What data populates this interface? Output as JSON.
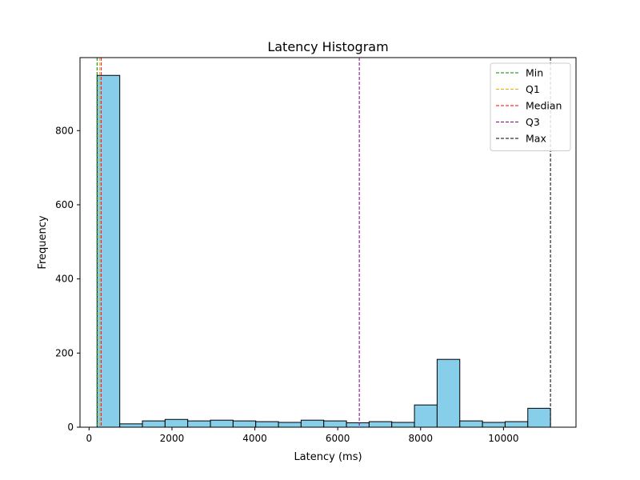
{
  "chart_data": {
    "type": "bar",
    "subtype": "histogram",
    "title": "Latency Histogram",
    "xlabel": "Latency (ms)",
    "ylabel": "Frequency",
    "xlim": [
      -219,
      11749
    ],
    "ylim": [
      0,
      997
    ],
    "x_ticks": [
      0,
      2000,
      4000,
      6000,
      8000,
      10000
    ],
    "y_ticks": [
      0,
      200,
      400,
      600,
      800
    ],
    "grid": false,
    "legend_position": "top-right",
    "bar_color": "#87ceeb",
    "bar_edge_color": "#000000",
    "bins": [
      {
        "start": 193,
        "end": 740,
        "count": 949
      },
      {
        "start": 740,
        "end": 1287,
        "count": 9
      },
      {
        "start": 1287,
        "end": 1834,
        "count": 17
      },
      {
        "start": 1834,
        "end": 2381,
        "count": 21
      },
      {
        "start": 2381,
        "end": 2928,
        "count": 17
      },
      {
        "start": 2928,
        "end": 3475,
        "count": 19
      },
      {
        "start": 3475,
        "end": 4022,
        "count": 17
      },
      {
        "start": 4022,
        "end": 4569,
        "count": 15
      },
      {
        "start": 4569,
        "end": 5116,
        "count": 13
      },
      {
        "start": 5116,
        "end": 5663,
        "count": 19
      },
      {
        "start": 5663,
        "end": 6210,
        "count": 17
      },
      {
        "start": 6210,
        "end": 6757,
        "count": 12
      },
      {
        "start": 6757,
        "end": 7304,
        "count": 15
      },
      {
        "start": 7304,
        "end": 7851,
        "count": 13
      },
      {
        "start": 7851,
        "end": 8398,
        "count": 60
      },
      {
        "start": 8398,
        "end": 8945,
        "count": 183
      },
      {
        "start": 8945,
        "end": 9492,
        "count": 17
      },
      {
        "start": 9492,
        "end": 10039,
        "count": 13
      },
      {
        "start": 10039,
        "end": 10586,
        "count": 15
      },
      {
        "start": 10586,
        "end": 11133,
        "count": 51
      }
    ],
    "reference_lines": [
      {
        "name": "Min",
        "value": 193,
        "color": "#008000"
      },
      {
        "name": "Q1",
        "value": 250,
        "color": "#ffa500"
      },
      {
        "name": "Median",
        "value": 290,
        "color": "#ff0000"
      },
      {
        "name": "Q3",
        "value": 6520,
        "color": "#800080"
      },
      {
        "name": "Max",
        "value": 11133,
        "color": "#000000"
      }
    ]
  }
}
